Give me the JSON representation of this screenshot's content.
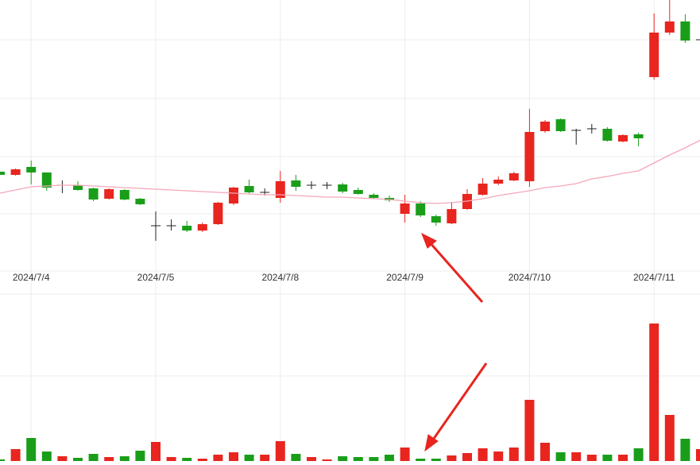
{
  "chart_data": {
    "type": "candlestick",
    "categories": [
      null,
      null,
      "2024/7/4",
      null,
      null,
      null,
      null,
      null,
      null,
      null,
      "2024/7/5",
      null,
      null,
      null,
      null,
      null,
      null,
      null,
      "2024/7/8",
      null,
      null,
      null,
      null,
      null,
      null,
      null,
      "2024/7/9",
      null,
      null,
      null,
      null,
      null,
      null,
      null,
      "2024/7/10",
      null,
      null,
      null,
      null,
      null,
      null,
      null,
      "2024/7/11",
      null,
      null,
      null
    ],
    "ohlc": [
      [
        124,
        124,
        120,
        120
      ],
      [
        120,
        128,
        119,
        127
      ],
      [
        130,
        138,
        108,
        123
      ],
      [
        123,
        123,
        100,
        104
      ],
      [
        107,
        113,
        97,
        107
      ],
      [
        107,
        112,
        100,
        101
      ],
      [
        103,
        104,
        87,
        89
      ],
      [
        90,
        103,
        89,
        102
      ],
      [
        101,
        102,
        88,
        89
      ],
      [
        90,
        91,
        82,
        83
      ],
      [
        56,
        74,
        37,
        56
      ],
      [
        56,
        64,
        50,
        56
      ],
      [
        56,
        62,
        48,
        50
      ],
      [
        50,
        60,
        48,
        58
      ],
      [
        58,
        86,
        57,
        85
      ],
      [
        84,
        105,
        82,
        104
      ],
      [
        106,
        114,
        96,
        98
      ],
      [
        98,
        103,
        94,
        98
      ],
      [
        91,
        125,
        85,
        112
      ],
      [
        113,
        120,
        100,
        105
      ],
      [
        107,
        112,
        102,
        107
      ],
      [
        107,
        111,
        102,
        107
      ],
      [
        108,
        110,
        97,
        99
      ],
      [
        101,
        104,
        95,
        96
      ],
      [
        95,
        97,
        90,
        91
      ],
      [
        91,
        94,
        86,
        88
      ],
      [
        71,
        95,
        60,
        84
      ],
      [
        84,
        87,
        67,
        69
      ],
      [
        68,
        70,
        56,
        60
      ],
      [
        59,
        86,
        58,
        77
      ],
      [
        77,
        102,
        76,
        96
      ],
      [
        95,
        116,
        94,
        109
      ],
      [
        109,
        118,
        107,
        114
      ],
      [
        113,
        124,
        112,
        122
      ],
      [
        112,
        203,
        105,
        174
      ],
      [
        175,
        189,
        173,
        187
      ],
      [
        190,
        191,
        174,
        175
      ],
      [
        176,
        178,
        158,
        176
      ],
      [
        178,
        184,
        172,
        178
      ],
      [
        178,
        180,
        162,
        163
      ],
      [
        162,
        171,
        161,
        170
      ],
      [
        171,
        173,
        156,
        166
      ],
      [
        243,
        323,
        240,
        299
      ],
      [
        299,
        340,
        296,
        313
      ],
      [
        313,
        322,
        286,
        289
      ],
      [
        290,
        292,
        288,
        290
      ]
    ],
    "volume": [
      2,
      15,
      29,
      12,
      6,
      4,
      9,
      5,
      6,
      13,
      24,
      5,
      4,
      3,
      8,
      11,
      8,
      8,
      25,
      9,
      5,
      2,
      6,
      5,
      5,
      8,
      17,
      3,
      3,
      7,
      10,
      16,
      12,
      17,
      77,
      23,
      11,
      11,
      8,
      8,
      8,
      16,
      173,
      58,
      28,
      15
    ],
    "ma": [
      97,
      101,
      105,
      106,
      107,
      107,
      106,
      105,
      104,
      103,
      102,
      101,
      100,
      99,
      98,
      97,
      96,
      95,
      95,
      94,
      93,
      92,
      92,
      91,
      90,
      89,
      87,
      85,
      84,
      85,
      87,
      90,
      94,
      97,
      100,
      104,
      106,
      109,
      115,
      118,
      122,
      125,
      135,
      145,
      154,
      164
    ],
    "up_color": "#e8251f",
    "down_color": "#1a9e1a",
    "flat_color": "#222222",
    "ma_color": "#f4a7b9",
    "ylim": [
      0,
      340
    ],
    "volume_lim": [
      0,
      210
    ]
  }
}
